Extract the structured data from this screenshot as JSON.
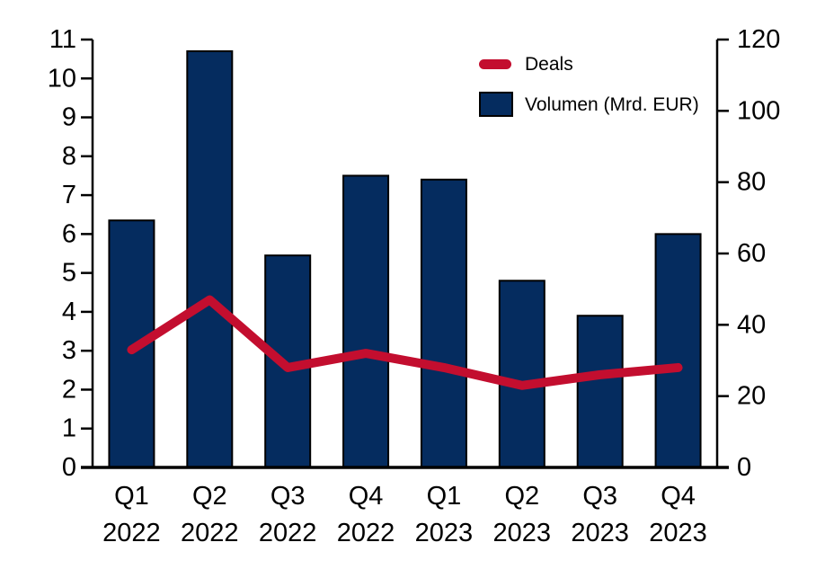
{
  "chart_data": {
    "type": "combo-bar-line",
    "title": "",
    "background": "#FFFFFF",
    "grid": false,
    "legend_position": "top-right",
    "axis_color": "#000000",
    "categories": [
      {
        "quarter": "Q1",
        "year": "2022"
      },
      {
        "quarter": "Q2",
        "year": "2022"
      },
      {
        "quarter": "Q3",
        "year": "2022"
      },
      {
        "quarter": "Q4",
        "year": "2022"
      },
      {
        "quarter": "Q1",
        "year": "2023"
      },
      {
        "quarter": "Q2",
        "year": "2023"
      },
      {
        "quarter": "Q3",
        "year": "2023"
      },
      {
        "quarter": "Q4",
        "year": "2023"
      }
    ],
    "series": [
      {
        "name": "Deals",
        "type": "line",
        "axis": "right",
        "color": "#C30E2F",
        "values": [
          33,
          47,
          28,
          32,
          28,
          23,
          26,
          28
        ]
      },
      {
        "name": "Volumen (Mrd. EUR)",
        "type": "bar",
        "axis": "left",
        "color": "#052C5F",
        "outline": "#000000",
        "values": [
          6.35,
          10.7,
          5.45,
          7.5,
          7.4,
          4.8,
          3.9,
          6.0
        ]
      }
    ],
    "left_axis": {
      "min": 0,
      "max": 11,
      "ticks": [
        0,
        1,
        2,
        3,
        4,
        5,
        6,
        7,
        8,
        9,
        10,
        11
      ]
    },
    "right_axis": {
      "min": 0,
      "max": 120,
      "ticks": [
        0,
        20,
        40,
        60,
        80,
        100,
        120
      ]
    }
  }
}
